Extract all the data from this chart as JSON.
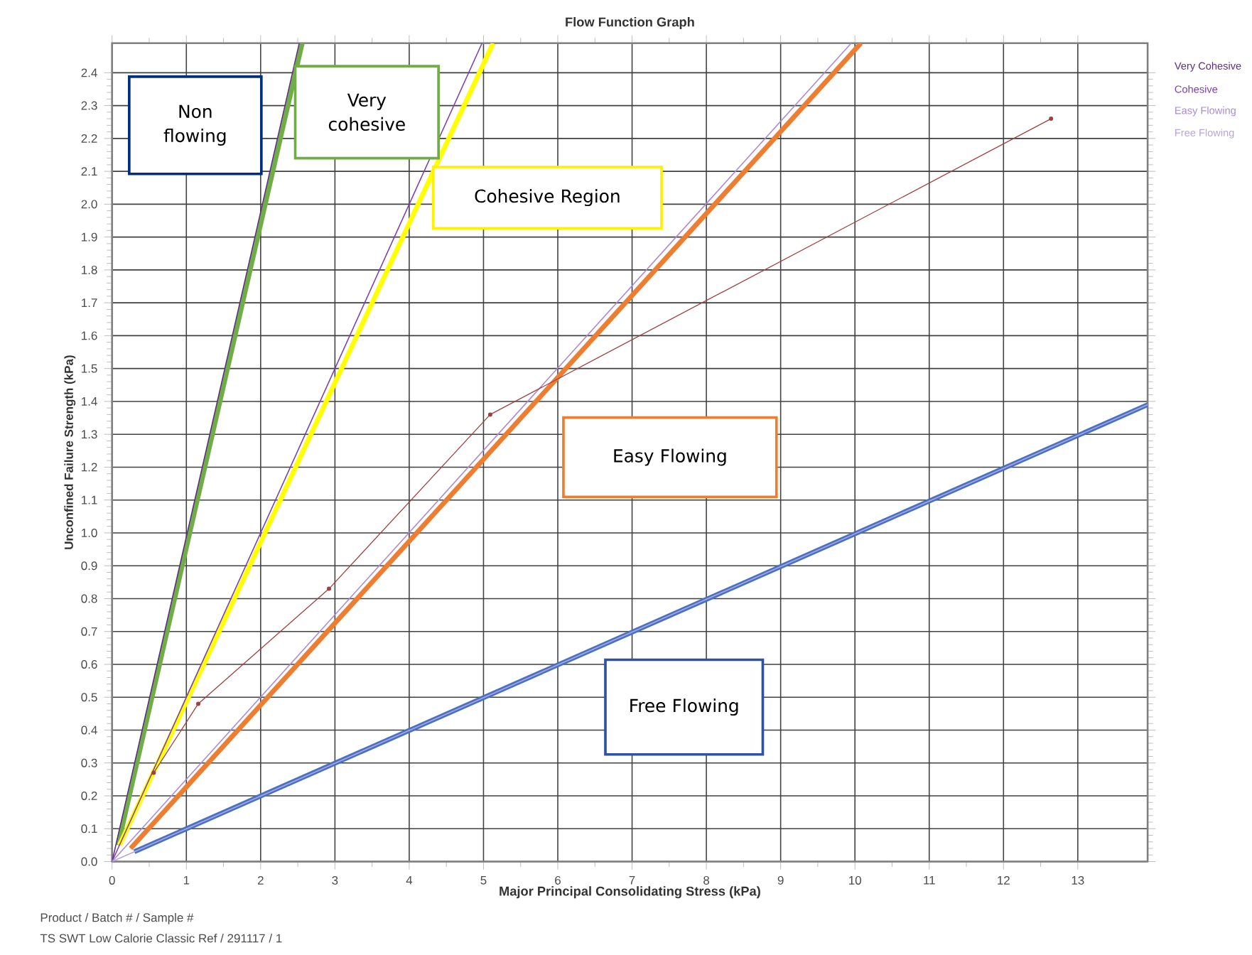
{
  "chart_data": {
    "type": "line",
    "title": "Flow Function Graph",
    "xlabel": "Major Principal Consolidating Stress (kPa)",
    "ylabel": "Unconfined Failure Strength (kPa)",
    "xlim": [
      0,
      13.94
    ],
    "ylim": [
      0,
      2.49
    ],
    "xticks": [
      0,
      1,
      2,
      3,
      4,
      5,
      6,
      7,
      8,
      9,
      10,
      11,
      12,
      13
    ],
    "yticks": [
      {
        "value": 0,
        "label": "0.0"
      },
      0.1,
      0.2,
      0.3,
      0.4,
      0.5,
      0.6,
      0.7,
      0.8,
      0.9,
      {
        "value": 1,
        "label": "1.0"
      },
      1.1,
      1.2,
      1.3,
      1.4,
      1.5,
      1.6,
      1.7,
      1.8,
      1.9,
      {
        "value": 2,
        "label": "2.0"
      },
      2.1,
      2.2,
      2.3,
      2.4
    ],
    "grid": true,
    "legend": "right",
    "line_style": "solid",
    "series": [
      {
        "color": "#70ad47",
        "marker": "none",
        "x": [
          0.08,
          2.56
        ],
        "values": [
          0.05,
          2.49
        ]
      },
      {
        "color": "#ffff00",
        "marker": "none",
        "x": [
          0.1,
          5.13
        ],
        "values": [
          0.05,
          2.49
        ]
      },
      {
        "color": "#ed7d31",
        "marker": "none",
        "x": [
          0.25,
          10.08
        ],
        "values": [
          0.04,
          2.49
        ]
      },
      {
        "color": "#4472c4",
        "marker": "none",
        "x": [
          0.3,
          13.94
        ],
        "values": [
          0.03,
          1.39
        ]
      },
      {
        "name": "Very Cohesive",
        "color": "#5a2d82",
        "marker": "none",
        "x": [
          0,
          2.52
        ],
        "values": [
          0,
          2.49
        ]
      },
      {
        "name": "Cohesive",
        "color": "#7a3fb0",
        "marker": "none",
        "x": [
          0,
          4.98
        ],
        "values": [
          0,
          2.49
        ]
      },
      {
        "name": "Easy Flowing",
        "color": "#a98ad6",
        "marker": "none",
        "x": [
          0,
          9.95
        ],
        "values": [
          0,
          2.49
        ]
      },
      {
        "name": "Free Flowing",
        "color": "#b9a3e0",
        "marker": "none",
        "x": [
          0,
          13.94
        ],
        "values": [
          0,
          1.39
        ]
      },
      {
        "color": "#a04040",
        "marker": "circle",
        "x": [
          0.56,
          1.16,
          2.92,
          5.09,
          12.64
        ],
        "values": [
          0.27,
          0.48,
          0.83,
          1.36,
          2.26
        ]
      }
    ],
    "annotations": [
      "Non flowing",
      "Very cohesive",
      "Cohesive Region",
      "Easy Flowing",
      "Free Flowing",
      "Product / Batch # / Sample #",
      "TS SWT Low Calorie Classic Ref / 291117 / 1"
    ]
  }
}
